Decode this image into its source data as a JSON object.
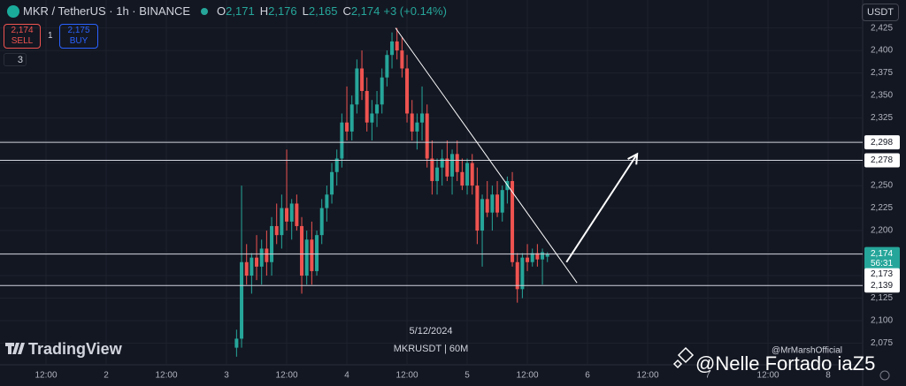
{
  "header": {
    "symbol": "MKR / TetherUS · 1h · BINANCE",
    "ohlc": [
      {
        "key": "O",
        "value": "2,171"
      },
      {
        "key": "H",
        "value": "2,176"
      },
      {
        "key": "L",
        "value": "2,165"
      },
      {
        "key": "C",
        "value": "2,174"
      }
    ],
    "change": "+3 (+0.14%)"
  },
  "trade": {
    "sell_price": "2,174",
    "sell": "SELL",
    "spread": "1",
    "buy_price": "2,175",
    "buy": "BUY"
  },
  "indicators_count": "3",
  "currency": "USDT",
  "branding": {
    "logo": "TradingView",
    "author": "@MrMarshOfficial",
    "overlay": "@Nelle Fortado iaZ5"
  },
  "chart_data": {
    "type": "candlestick",
    "up_color": "#26a69a",
    "down_color": "#ef5350",
    "x": [
      50,
      51,
      52,
      53,
      54,
      55,
      56,
      57,
      58,
      59,
      60,
      61,
      62,
      63,
      64,
      65,
      66,
      67,
      68,
      69,
      70,
      71,
      72,
      73,
      74,
      75,
      76,
      77,
      78,
      79,
      80,
      81,
      82,
      83,
      84,
      85,
      86,
      87,
      88,
      89,
      90,
      91,
      92,
      93,
      94,
      95,
      96,
      97,
      98,
      99,
      100,
      101,
      102,
      103,
      104,
      105,
      106,
      107,
      108,
      109,
      110,
      111,
      112
    ],
    "open": [
      2070,
      2080,
      2165,
      2150,
      2170,
      2160,
      2180,
      2165,
      2205,
      2195,
      2225,
      2210,
      2230,
      2205,
      2150,
      2190,
      2155,
      2195,
      2225,
      2240,
      2265,
      2280,
      2320,
      2310,
      2340,
      2380,
      2355,
      2320,
      2330,
      2340,
      2370,
      2395,
      2410,
      2400,
      2380,
      2330,
      2310,
      2320,
      2330,
      2280,
      2255,
      2270,
      2280,
      2260,
      2285,
      2265,
      2250,
      2275,
      2250,
      2200,
      2235,
      2220,
      2240,
      2220,
      2245,
      2255,
      2165,
      2135,
      2170,
      2165,
      2175,
      2168,
      2171
    ],
    "high": [
      2090,
      2250,
      2185,
      2175,
      2195,
      2190,
      2200,
      2215,
      2230,
      2240,
      2290,
      2235,
      2240,
      2215,
      2200,
      2210,
      2200,
      2235,
      2250,
      2275,
      2290,
      2330,
      2360,
      2350,
      2390,
      2400,
      2370,
      2345,
      2355,
      2380,
      2400,
      2420,
      2425,
      2415,
      2395,
      2345,
      2330,
      2360,
      2340,
      2300,
      2280,
      2290,
      2300,
      2290,
      2300,
      2280,
      2280,
      2285,
      2270,
      2240,
      2255,
      2250,
      2255,
      2250,
      2260,
      2265,
      2175,
      2175,
      2185,
      2180,
      2185,
      2180,
      2176
    ],
    "low": [
      2060,
      2070,
      2140,
      2130,
      2145,
      2140,
      2150,
      2150,
      2185,
      2180,
      2200,
      2190,
      2200,
      2130,
      2140,
      2140,
      2150,
      2185,
      2210,
      2230,
      2250,
      2270,
      2300,
      2300,
      2330,
      2345,
      2310,
      2300,
      2315,
      2330,
      2360,
      2380,
      2390,
      2370,
      2320,
      2300,
      2290,
      2300,
      2270,
      2240,
      2240,
      2250,
      2255,
      2240,
      2255,
      2245,
      2240,
      2240,
      2185,
      2160,
      2215,
      2200,
      2215,
      2210,
      2230,
      2160,
      2120,
      2125,
      2155,
      2160,
      2160,
      2140,
      2165
    ],
    "close": [
      2080,
      2165,
      2150,
      2170,
      2160,
      2180,
      2165,
      2205,
      2195,
      2225,
      2210,
      2230,
      2205,
      2150,
      2190,
      2155,
      2195,
      2225,
      2240,
      2265,
      2280,
      2320,
      2310,
      2340,
      2380,
      2355,
      2320,
      2330,
      2340,
      2370,
      2395,
      2410,
      2400,
      2380,
      2330,
      2310,
      2320,
      2330,
      2280,
      2255,
      2270,
      2280,
      2260,
      2285,
      2265,
      2250,
      2275,
      2250,
      2200,
      2235,
      2220,
      2240,
      2220,
      2245,
      2255,
      2165,
      2135,
      2170,
      2165,
      2175,
      2168,
      2176,
      2174
    ],
    "xlim": [
      2.82,
      174.87
    ],
    "xticks": [
      {
        "value": 12,
        "label": "12:00"
      },
      {
        "value": 24,
        "label": "2"
      },
      {
        "value": 36,
        "label": "12:00"
      },
      {
        "value": 48,
        "label": "3"
      },
      {
        "value": 60,
        "label": "12:00"
      },
      {
        "value": 72,
        "label": "4"
      },
      {
        "value": 84,
        "label": "12:00"
      },
      {
        "value": 96,
        "label": "5"
      },
      {
        "value": 108,
        "label": "12:00"
      },
      {
        "value": 120,
        "label": "6"
      },
      {
        "value": 132,
        "label": "12:00"
      },
      {
        "value": 144,
        "label": "7"
      },
      {
        "value": 156,
        "label": "12:00"
      },
      {
        "value": 168,
        "label": "8"
      }
    ],
    "ylim": [
      2051,
      2456
    ],
    "yticks": [
      {
        "value": 2075,
        "label": "2,075"
      },
      {
        "value": 2100,
        "label": "2,100"
      },
      {
        "value": 2125,
        "label": "2,125"
      },
      {
        "value": 2150,
        "label": "2,150"
      },
      {
        "value": 2175,
        "label": "2,175"
      },
      {
        "value": 2200,
        "label": "2,200"
      },
      {
        "value": 2225,
        "label": "2,225"
      },
      {
        "value": 2250,
        "label": "2,250"
      },
      {
        "value": 2275,
        "label": "2,275"
      },
      {
        "value": 2300,
        "label": "2,300"
      },
      {
        "value": 2325,
        "label": "2,325"
      },
      {
        "value": 2350,
        "label": "2,350"
      },
      {
        "value": 2375,
        "label": "2,375"
      },
      {
        "value": 2400,
        "label": "2,400"
      },
      {
        "value": 2425,
        "label": "2,425"
      }
    ],
    "grid": true,
    "horizontal_lines": [
      {
        "value": 2298,
        "label": "2,298"
      },
      {
        "value": 2278,
        "label": "2,278"
      },
      {
        "value": 2139,
        "label": "2,139"
      }
    ],
    "last_price": {
      "value": 2174,
      "label": "2,174",
      "countdown": "56:31"
    },
    "bid_price": {
      "value": 2173,
      "label": "2,173"
    },
    "trendline": {
      "x": [
        81.7,
        117.9
      ],
      "y": [
        2425,
        2142
      ]
    },
    "arrow": {
      "x": [
        115.8,
        129.9
      ],
      "y": [
        2165,
        2285
      ]
    },
    "watermark": [
      "5/12/2024",
      "MKRUSDT | 60M"
    ]
  }
}
